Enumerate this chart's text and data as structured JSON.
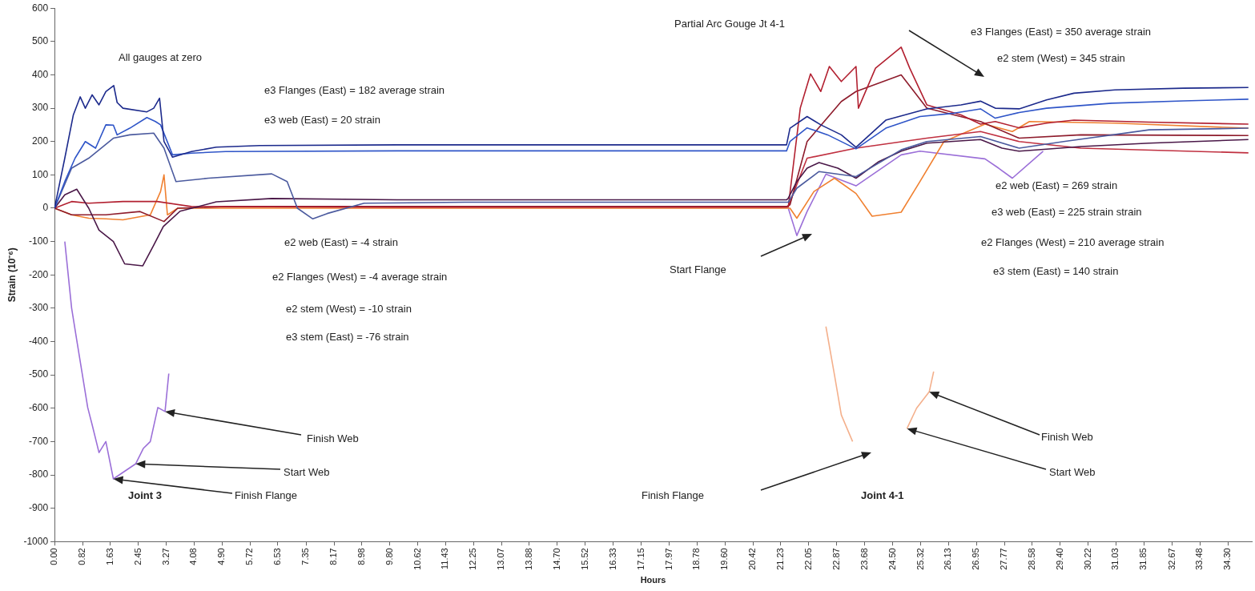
{
  "chart_data": {
    "type": "line",
    "xlabel": "Hours",
    "ylabel": "Strain (10⁻⁶)",
    "marker": "none",
    "xlim": [
      0,
      35
    ],
    "ylim": [
      -1000,
      600
    ],
    "xticks": [
      {
        "value": 0,
        "label": "0.00"
      },
      {
        "value": 0.82,
        "label": "0.82"
      },
      {
        "value": 1.63,
        "label": "1.63"
      },
      {
        "value": 2.45,
        "label": "2.45"
      },
      {
        "value": 3.27,
        "label": "3.27"
      },
      {
        "value": 4.08,
        "label": "4.08"
      },
      {
        "value": 4.9,
        "label": "4.90"
      },
      {
        "value": 5.72,
        "label": "5.72"
      },
      {
        "value": 6.53,
        "label": "6.53"
      },
      {
        "value": 7.35,
        "label": "7.35"
      },
      {
        "value": 8.17,
        "label": "8.17"
      },
      {
        "value": 8.98,
        "label": "8.98"
      },
      {
        "value": 9.8,
        "label": "9.80"
      },
      {
        "value": 10.62,
        "label": "10.62"
      },
      {
        "value": 11.43,
        "label": "11.43"
      },
      {
        "value": 12.25,
        "label": "12.25"
      },
      {
        "value": 13.07,
        "label": "13.07"
      },
      {
        "value": 13.88,
        "label": "13.88"
      },
      {
        "value": 14.7,
        "label": "14.70"
      },
      {
        "value": 15.52,
        "label": "15.52"
      },
      {
        "value": 16.33,
        "label": "16.33"
      },
      {
        "value": 17.15,
        "label": "17.15"
      },
      {
        "value": 17.97,
        "label": "17.97"
      },
      {
        "value": 18.78,
        "label": "18.78"
      },
      {
        "value": 19.6,
        "label": "19.60"
      },
      {
        "value": 20.42,
        "label": "20.42"
      },
      {
        "value": 21.23,
        "label": "21.23"
      },
      {
        "value": 22.05,
        "label": "22.05"
      },
      {
        "value": 22.87,
        "label": "22.87"
      },
      {
        "value": 23.68,
        "label": "23.68"
      },
      {
        "value": 24.5,
        "label": "24.50"
      },
      {
        "value": 25.32,
        "label": "25.32"
      },
      {
        "value": 26.13,
        "label": "26.13"
      },
      {
        "value": 26.95,
        "label": "26.95"
      },
      {
        "value": 27.77,
        "label": "27.77"
      },
      {
        "value": 28.58,
        "label": "28.58"
      },
      {
        "value": 29.4,
        "label": "29.40"
      },
      {
        "value": 30.22,
        "label": "30.22"
      },
      {
        "value": 31.03,
        "label": "31.03"
      },
      {
        "value": 31.85,
        "label": "31.85"
      },
      {
        "value": 32.67,
        "label": "32.67"
      },
      {
        "value": 33.48,
        "label": "33.48"
      },
      {
        "value": 34.3,
        "label": "34.30"
      }
    ],
    "yticks": [
      -1000,
      -900,
      -800,
      -700,
      -600,
      -500,
      -400,
      -300,
      -200,
      -100,
      0,
      100,
      200,
      300,
      400,
      500,
      600
    ],
    "series": [
      {
        "color": "#1c2a8c",
        "x": [
          0,
          0.3,
          0.55,
          0.75,
          0.9,
          1.1,
          1.3,
          1.5,
          1.73,
          1.83,
          2.0,
          2.7,
          2.9,
          3.07,
          3.2,
          3.45,
          4.0,
          4.73,
          6,
          10,
          15,
          21.4,
          21.5,
          22.0,
          22.4,
          23.0,
          23.43,
          24.3,
          25.5,
          26.5,
          27.07,
          27.5,
          28.2,
          29.0,
          29.8,
          31,
          33,
          34.9
        ],
        "values": [
          0,
          150,
          280,
          334,
          300,
          340,
          310,
          350,
          368,
          317,
          300,
          289,
          300,
          330,
          200,
          153,
          170,
          183,
          188,
          190,
          190,
          190,
          240,
          275,
          250,
          220,
          183,
          264,
          298,
          310,
          321,
          300,
          298,
          325,
          345,
          355,
          360,
          362
        ]
      },
      {
        "color": "#2f55c8",
        "x": [
          0,
          0.3,
          0.6,
          0.9,
          1.2,
          1.5,
          1.72,
          1.83,
          2.2,
          2.7,
          2.95,
          3.1,
          3.45,
          4.0,
          5,
          10,
          15,
          21.4,
          21.5,
          22.0,
          22.6,
          23.43,
          24.3,
          25.3,
          26.3,
          27.07,
          27.5,
          28.2,
          29.0,
          30.9,
          33,
          34.9
        ],
        "values": [
          0,
          80,
          150,
          200,
          180,
          250,
          249,
          220,
          240,
          272,
          260,
          250,
          160,
          165,
          170,
          172,
          172,
          172,
          200,
          241,
          220,
          178,
          240,
          275,
          285,
          298,
          270,
          287,
          300,
          315,
          322,
          327
        ]
      },
      {
        "color": "#4b5a9e",
        "x": [
          0,
          0.5,
          1.0,
          1.72,
          2.2,
          2.9,
          3.2,
          3.55,
          4.5,
          6.35,
          6.8,
          7.1,
          7.55,
          7.97,
          9.05,
          12,
          21.4,
          21.45,
          21.7,
          22.35,
          23.43,
          24.75,
          25.5,
          27.07,
          28.2,
          29.5,
          32,
          34.9
        ],
        "values": [
          0,
          120,
          150,
          210,
          220,
          225,
          180,
          80,
          90,
          103,
          80,
          0,
          -32,
          -16,
          15,
          18,
          18,
          18,
          60,
          110,
          95,
          175,
          200,
          215,
          180,
          200,
          235,
          240
        ]
      },
      {
        "color": "#4a1848",
        "x": [
          0,
          0.3,
          0.65,
          1.0,
          1.3,
          1.72,
          2.05,
          2.58,
          2.9,
          3.18,
          3.67,
          4.73,
          6.35,
          10,
          21.4,
          21.45,
          21.7,
          22.0,
          22.35,
          22.9,
          23.43,
          24.1,
          24.75,
          25.5,
          27.07,
          27.7,
          28.2,
          29.0,
          30,
          32,
          34.9
        ],
        "values": [
          0,
          40,
          57,
          0,
          -66,
          -100,
          -167,
          -173,
          -111,
          -55,
          -9,
          19,
          29,
          25,
          25,
          30,
          80,
          120,
          137,
          120,
          90,
          140,
          171,
          195,
          206,
          180,
          171,
          177,
          185,
          195,
          206
        ]
      },
      {
        "color": "#b22030",
        "x": [
          0,
          0.5,
          1,
          2,
          3,
          4,
          10,
          21.4,
          21.45,
          21.8,
          22.1,
          22.4,
          22.65,
          23.0,
          23.43,
          23.5,
          24.0,
          24.75,
          25.0,
          25.5,
          26.5,
          27.07,
          27.5,
          28.2,
          29.0,
          29.8,
          32,
          34.9
        ],
        "values": [
          0,
          20,
          15,
          20,
          20,
          5,
          3,
          3,
          4,
          300,
          403,
          350,
          425,
          380,
          425,
          300,
          420,
          483,
          420,
          310,
          280,
          252,
          260,
          241,
          255,
          264,
          258,
          252
        ]
      },
      {
        "color": "#8e1c2c",
        "x": [
          0,
          0.5,
          1.5,
          2.5,
          3.2,
          3.6,
          5,
          21.4,
          21.5,
          22,
          23,
          23.43,
          24.75,
          25.5,
          27.07,
          28.2,
          30,
          34.9
        ],
        "values": [
          0,
          -20,
          -20,
          -10,
          -40,
          0,
          5,
          5,
          10,
          200,
          320,
          350,
          400,
          300,
          260,
          210,
          220,
          218
        ]
      },
      {
        "color": "#c03040",
        "x": [
          21.45,
          22,
          23.43,
          25.5,
          27.07,
          28.2,
          30,
          34.9
        ],
        "values": [
          5,
          150,
          180,
          210,
          230,
          200,
          180,
          166
        ]
      },
      {
        "color": "#f08030",
        "x": [
          0,
          0.5,
          1.0,
          1.5,
          2.0,
          2.8,
          3.1,
          3.2,
          3.3,
          3.6,
          4.2,
          21.5,
          21.7,
          22.2,
          22.8,
          23.43,
          23.9,
          24.75,
          25.3,
          26.0,
          27.2,
          28.0,
          28.5,
          31,
          34.9
        ],
        "values": [
          0,
          -20,
          -30,
          -32,
          -35,
          -20,
          50,
          100,
          -20,
          0,
          0,
          0,
          -30,
          50,
          90,
          44,
          -24,
          -12,
          80,
          200,
          252,
          230,
          260,
          255,
          240
        ]
      },
      {
        "color": "#9b6fd8",
        "x": [
          0.3,
          0.5,
          0.65,
          0.97,
          1.1,
          1.3,
          1.5,
          1.72,
          2.37,
          2.6,
          2.8,
          3.02,
          3.23,
          3.34,
          10,
          21.45,
          21.7,
          22.0,
          22.55,
          23.43,
          24.75,
          25.3,
          27.2,
          27.6,
          28.0,
          28.9
        ],
        "values": [
          -100,
          -300,
          -396,
          -598,
          -650,
          -733,
          -700,
          -812,
          -767,
          -720,
          -700,
          -598,
          -610,
          -496,
          null,
          0,
          -82,
          -10,
          102,
          67,
          160,
          171,
          148,
          120,
          90,
          171
        ]
      },
      {
        "color": "#f4b08c",
        "x": [
          22.55,
          22.8,
          23.0,
          23.33,
          24.1,
          24.92,
          25.2,
          25.57,
          25.7
        ],
        "values": [
          -355,
          -500,
          -620,
          -700,
          null,
          -661,
          -600,
          -551,
          -490
        ]
      }
    ],
    "annotations": [
      "All gauges at zero",
      "e3 Flanges (East) = 182 average strain",
      "e3 web (East) = 20 strain",
      "e2 web (East) = -4 strain",
      "e2 Flanges (West) = -4 average strain",
      "e2 stem (West) = -10 strain",
      "e3 stem (East) = -76 strain",
      "Joint 3",
      {
        "text": "Finish Flange",
        "x": 1.72,
        "y": -812
      },
      {
        "text": "Start Web",
        "x": 2.37,
        "y": -767
      },
      {
        "text": "Finish Web",
        "x": 3.23,
        "y": -610
      },
      "Partial Arc Gouge Jt 4-1",
      "e3 Flanges (East) = 350 average strain",
      "e2 stem (West) = 345 strain",
      "e2 web (East) = 269 strain",
      "e3 web (East) = 225 strain strain",
      "e2 Flanges (West) = 210 average strain",
      "e3 stem (East) = 140 strain",
      "Start Flange",
      "Finish Flange",
      {
        "text": "Start Web",
        "x": 24.92,
        "y": -661
      },
      {
        "text": "Finish Web",
        "x": 25.57,
        "y": -551
      },
      "Joint 4-1"
    ]
  }
}
